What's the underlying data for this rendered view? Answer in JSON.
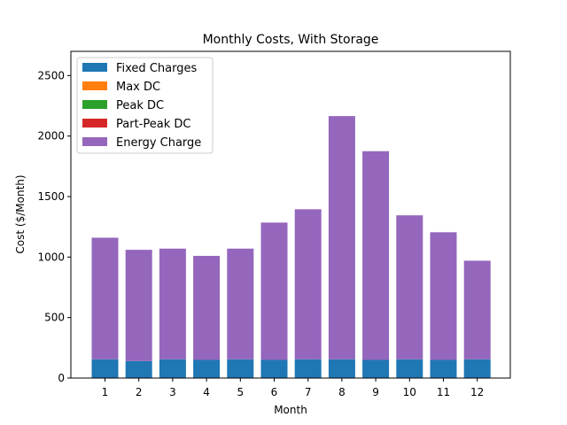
{
  "chart_data": {
    "type": "bar",
    "stacked": true,
    "title": "Monthly Costs, With Storage",
    "xlabel": "Month",
    "ylabel": "Cost ($/Month)",
    "categories": [
      "1",
      "2",
      "3",
      "4",
      "5",
      "6",
      "7",
      "8",
      "9",
      "10",
      "11",
      "12"
    ],
    "ylim": [
      0,
      2700
    ],
    "yticks": [
      0,
      500,
      1000,
      1500,
      2000,
      2500
    ],
    "legend_position": "upper-left",
    "series": [
      {
        "name": "Fixed Charges",
        "color": "#1f77b4",
        "values": [
          155,
          140,
          155,
          150,
          155,
          150,
          155,
          155,
          150,
          155,
          150,
          155
        ]
      },
      {
        "name": "Max DC",
        "color": "#ff7f0e",
        "values": [
          0,
          0,
          0,
          0,
          0,
          0,
          0,
          0,
          0,
          0,
          0,
          0
        ]
      },
      {
        "name": "Peak DC",
        "color": "#2ca02c",
        "values": [
          0,
          0,
          0,
          0,
          0,
          0,
          0,
          0,
          0,
          0,
          0,
          0
        ]
      },
      {
        "name": "Part-Peak DC",
        "color": "#d62728",
        "values": [
          0,
          0,
          0,
          0,
          0,
          0,
          0,
          0,
          0,
          0,
          0,
          0
        ]
      },
      {
        "name": "Energy Charge",
        "color": "#9467bd",
        "values": [
          1005,
          920,
          915,
          860,
          915,
          1135,
          1240,
          2010,
          1725,
          1190,
          1055,
          815
        ]
      }
    ]
  }
}
